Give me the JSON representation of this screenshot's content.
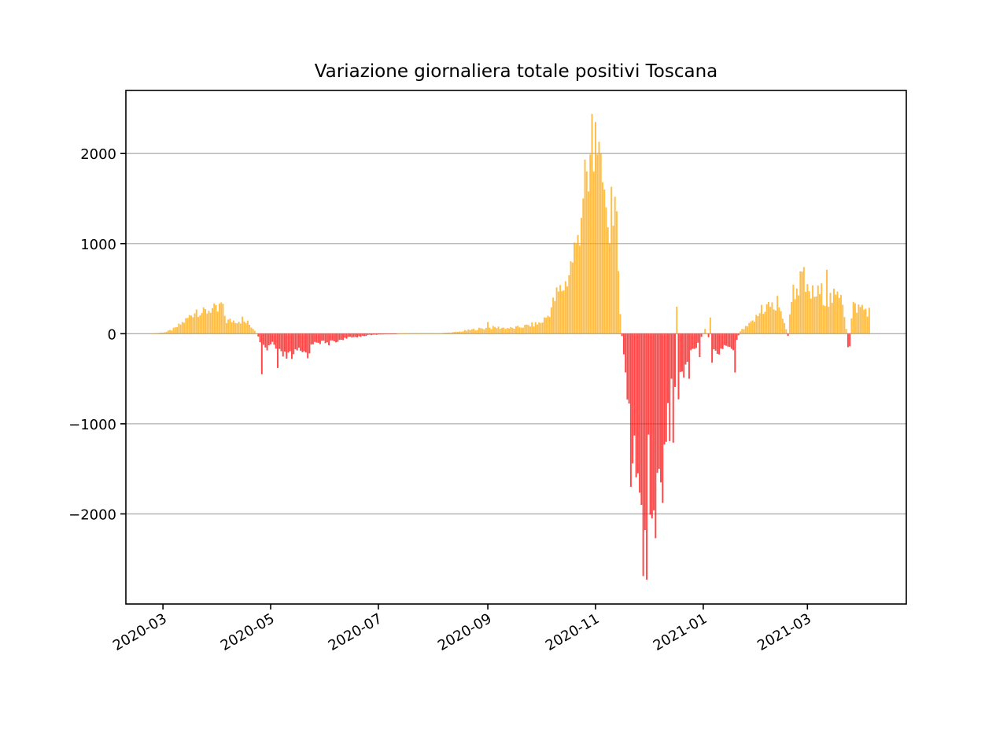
{
  "chart_data": {
    "type": "bar",
    "title": "Variazione giornaliera totale positivi Toscana",
    "xlabel": "",
    "ylabel": "",
    "x_start": "2020-02-24",
    "x_end": "2021-04-05",
    "xlim": [
      "2020-02-09",
      "2021-04-26"
    ],
    "ylim": [
      -3000,
      2700
    ],
    "yticks": [
      2000,
      1000,
      0,
      -1000,
      -2000
    ],
    "ytick_labels": [
      "2000",
      "1000",
      "0",
      "−1000",
      "−2000"
    ],
    "xticks": [
      "2020-03-01",
      "2020-05-01",
      "2020-07-01",
      "2020-09-01",
      "2020-11-01",
      "2021-01-01",
      "2021-03-01"
    ],
    "xtick_labels": [
      "2020-03",
      "2020-05",
      "2020-07",
      "2020-09",
      "2020-11",
      "2021-01",
      "2021-03"
    ],
    "grid": "y",
    "positive_color": "#ffa500",
    "negative_color": "#ff0000",
    "segments": [
      [
        "2020-02-24",
        0
      ],
      [
        "2020-03-03",
        20
      ],
      [
        "2020-03-08",
        60
      ],
      [
        "2020-03-14",
        150
      ],
      [
        "2020-03-20",
        270
      ],
      [
        "2020-03-24",
        230
      ],
      [
        "2020-03-28",
        280
      ],
      [
        "2020-04-01",
        250
      ],
      [
        "2020-04-03",
        330
      ],
      [
        "2020-04-06",
        140
      ],
      [
        "2020-04-13",
        150
      ],
      [
        "2020-04-18",
        120
      ],
      [
        "2020-04-22",
        40
      ],
      [
        "2020-04-25",
        -80
      ],
      [
        "2020-04-28",
        -200
      ],
      [
        "2020-05-02",
        -100
      ],
      [
        "2020-05-06",
        -230
      ],
      [
        "2020-05-12",
        -260
      ],
      [
        "2020-05-17",
        -200
      ],
      [
        "2020-05-22",
        -220
      ],
      [
        "2020-05-26",
        -80
      ],
      [
        "2020-06-02",
        -110
      ],
      [
        "2020-06-10",
        -60
      ],
      [
        "2020-06-20",
        -30
      ],
      [
        "2020-06-26",
        -15
      ],
      [
        "2020-07-05",
        -5
      ],
      [
        "2020-07-20",
        5
      ],
      [
        "2020-08-05",
        5
      ],
      [
        "2020-08-15",
        20
      ],
      [
        "2020-08-25",
        50
      ],
      [
        "2020-09-05",
        70
      ],
      [
        "2020-09-15",
        60
      ],
      [
        "2020-09-24",
        90
      ],
      [
        "2020-10-01",
        120
      ],
      [
        "2020-10-05",
        200
      ],
      [
        "2020-10-10",
        430
      ],
      [
        "2020-10-15",
        550
      ],
      [
        "2020-10-18",
        750
      ],
      [
        "2020-10-22",
        1100
      ],
      [
        "2020-10-24",
        1400
      ],
      [
        "2020-10-26",
        1700
      ],
      [
        "2020-10-28",
        1800
      ],
      [
        "2020-10-30",
        2000
      ],
      [
        "2020-11-01",
        2050
      ],
      [
        "2020-11-03",
        2000
      ],
      [
        "2020-11-05",
        1900
      ],
      [
        "2020-11-07",
        1700
      ],
      [
        "2020-11-09",
        1450
      ],
      [
        "2020-11-11",
        1300
      ],
      [
        "2020-11-13",
        1100
      ],
      [
        "2020-11-15",
        300
      ],
      [
        "2020-11-16",
        -30
      ],
      [
        "2020-11-18",
        -400
      ],
      [
        "2020-11-20",
        -900
      ],
      [
        "2020-11-22",
        -1300
      ],
      [
        "2020-11-24",
        -1600
      ],
      [
        "2020-11-26",
        -1500
      ],
      [
        "2020-11-28",
        -1800
      ],
      [
        "2020-11-30",
        -2100
      ],
      [
        "2020-12-02",
        -2300
      ],
      [
        "2020-12-04",
        -1800
      ],
      [
        "2020-12-06",
        -1700
      ],
      [
        "2020-12-08",
        -1900
      ],
      [
        "2020-12-10",
        -1500
      ],
      [
        "2020-12-12",
        -1200
      ],
      [
        "2020-12-14",
        -1100
      ],
      [
        "2020-12-16",
        -800
      ],
      [
        "2020-12-18",
        -600
      ],
      [
        "2020-12-20",
        -450
      ],
      [
        "2020-12-22",
        -350
      ],
      [
        "2020-12-24",
        -250
      ],
      [
        "2020-12-27",
        -150
      ],
      [
        "2020-12-30",
        -80
      ],
      [
        "2021-01-02",
        50
      ],
      [
        "2021-01-05",
        -100
      ],
      [
        "2021-01-10",
        -200
      ],
      [
        "2021-01-14",
        -120
      ],
      [
        "2021-01-18",
        -150
      ],
      [
        "2021-01-22",
        30
      ],
      [
        "2021-01-26",
        80
      ],
      [
        "2021-01-30",
        150
      ],
      [
        "2021-02-03",
        250
      ],
      [
        "2021-02-07",
        320
      ],
      [
        "2021-02-11",
        280
      ],
      [
        "2021-02-15",
        200
      ],
      [
        "2021-02-18",
        -20
      ],
      [
        "2021-02-20",
        450
      ],
      [
        "2021-02-23",
        500
      ],
      [
        "2021-02-26",
        600
      ],
      [
        "2021-03-01",
        450
      ],
      [
        "2021-03-05",
        430
      ],
      [
        "2021-03-09",
        450
      ],
      [
        "2021-03-13",
        380
      ],
      [
        "2021-03-17",
        400
      ],
      [
        "2021-03-21",
        380
      ],
      [
        "2021-03-24",
        -100
      ],
      [
        "2021-03-27",
        300
      ],
      [
        "2021-04-01",
        280
      ],
      [
        "2021-04-05",
        250
      ]
    ],
    "spikes": [
      [
        "2020-04-15",
        190
      ],
      [
        "2020-04-26",
        -450
      ],
      [
        "2020-05-05",
        -380
      ],
      [
        "2020-06-08",
        -90
      ],
      [
        "2020-09-01",
        130
      ],
      [
        "2020-10-21",
        1000
      ],
      [
        "2020-10-25",
        1500
      ],
      [
        "2020-10-27",
        1800
      ],
      [
        "2020-10-28",
        1580
      ],
      [
        "2020-10-30",
        2440
      ],
      [
        "2020-10-31",
        1800
      ],
      [
        "2020-11-01",
        2350
      ],
      [
        "2020-11-02",
        1990
      ],
      [
        "2020-11-03",
        2130
      ],
      [
        "2020-11-04",
        2000
      ],
      [
        "2020-11-05",
        1680
      ],
      [
        "2020-11-06",
        1600
      ],
      [
        "2020-11-08",
        1180
      ],
      [
        "2020-11-09",
        1000
      ],
      [
        "2020-11-10",
        1630
      ],
      [
        "2020-11-11",
        1200
      ],
      [
        "2020-11-12",
        1520
      ],
      [
        "2020-11-19",
        -730
      ],
      [
        "2020-11-21",
        -1700
      ],
      [
        "2020-11-22",
        -1440
      ],
      [
        "2020-11-23",
        -1130
      ],
      [
        "2020-11-25",
        -1550
      ],
      [
        "2020-11-27",
        -1900
      ],
      [
        "2020-11-28",
        -2690
      ],
      [
        "2020-11-29",
        -2180
      ],
      [
        "2020-11-30",
        -2730
      ],
      [
        "2020-12-01",
        -1120
      ],
      [
        "2020-12-03",
        -2050
      ],
      [
        "2020-12-04",
        -1960
      ],
      [
        "2020-12-05",
        -2270
      ],
      [
        "2020-12-07",
        -1500
      ],
      [
        "2020-12-08",
        -1650
      ],
      [
        "2020-12-10",
        -1230
      ],
      [
        "2020-12-11",
        -1200
      ],
      [
        "2020-12-12",
        -770
      ],
      [
        "2020-12-14",
        -500
      ],
      [
        "2020-12-17",
        300
      ],
      [
        "2020-12-20",
        -420
      ],
      [
        "2020-12-24",
        -500
      ],
      [
        "2020-12-30",
        -260
      ],
      [
        "2021-01-05",
        180
      ],
      [
        "2021-01-06",
        -320
      ],
      [
        "2021-01-19",
        -430
      ],
      [
        "2021-02-03",
        320
      ],
      [
        "2021-02-12",
        420
      ],
      [
        "2021-02-27",
        740
      ],
      [
        "2021-03-12",
        710
      ],
      [
        "2021-03-20",
        430
      ],
      [
        "2021-03-24",
        -150
      ],
      [
        "2021-03-25",
        -140
      ],
      [
        "2021-04-01",
        320
      ]
    ]
  }
}
